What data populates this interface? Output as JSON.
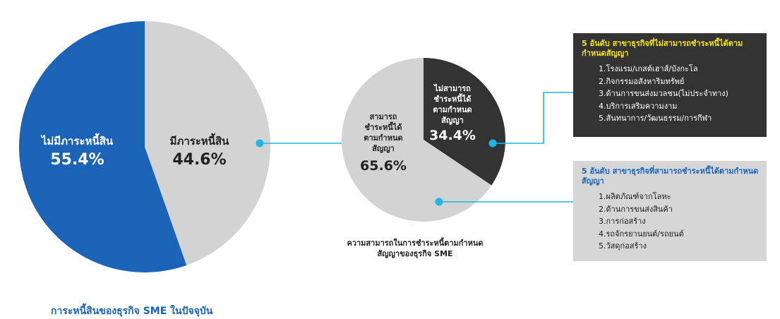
{
  "chart_data": [
    {
      "type": "pie",
      "title": "การะหนี้สินของธุรกิจ SME ในปัจจุบัน",
      "slices": [
        {
          "label": "ไม่มีภาระหนี้สิน",
          "value": 55.4,
          "display": "55.4%",
          "color": "#1a63b7"
        },
        {
          "label": "มีภาระหนี้สิน",
          "value": 44.6,
          "display": "44.6%",
          "color": "#d3d3d3"
        }
      ]
    },
    {
      "type": "pie",
      "title": "ความสามารถในการชำระหนี้ตามกำหนดสัญญาของธุรกิจ SME",
      "slices": [
        {
          "label": "ไม่สามารถชำระหนี้ได้ตามกำหนดสัญญา",
          "value": 34.4,
          "display": "34.4%",
          "color": "#333333"
        },
        {
          "label": "สามารถชำระหนี้ได้ตามกำหนดสัญญา",
          "value": 65.6,
          "display": "65.6%",
          "color": "#d3d3d3"
        }
      ]
    }
  ],
  "big_pie": {
    "no_debt_label": "ไม่มีภาระหนี้สิน",
    "no_debt_pct": "55.4%",
    "debt_label": "มีภาระหนี้สิน",
    "debt_pct": "44.6%",
    "caption": "การะหนี้สินของธุรกิจ SME ในปัจจุบัน"
  },
  "small_pie": {
    "cannot_line1": "ไม่สามารถ",
    "cannot_line2": "ชำระหนี้ได้",
    "cannot_line3": "ตามกำหนด",
    "cannot_line4": "สัญญา",
    "cannot_pct": "34.4%",
    "can_line1": "สามารถ",
    "can_line2": "ชำระหนี้ได้",
    "can_line3": "ตามกำหนด",
    "can_line4": "สัญญา",
    "can_pct": "65.6%",
    "caption_line1": "ความสามารถในการชำระหนี้ตามกำหนด",
    "caption_line2": "สัญญาของธุรกิจ SME"
  },
  "box_cannot": {
    "title": "5 อันดับ สาขาธุรกิจที่ไม่สามารถชำระหนี้ได้ตามกำหนดสัญญา",
    "items": [
      "1.โรงแรม/เกสต์เฮาส์/บังกะโล",
      "2.กิจกรรมอสังหาริมทรัพย์",
      "3.ด้านการขนส่งมวลชน(ไม่ประจำทาง)",
      "4.บริการเสริมความงาม",
      "5.สันทนาการ/วัฒนธรรม/การกีฬา"
    ]
  },
  "box_can": {
    "title": "5 อันดับ สาขาธุรกิจที่สามารถชำระหนี้ได้ตามกำหนดสัญญา",
    "items": [
      "1.ผลิตภัณฑ์จากโลหะ",
      "2.ด้านการขนส่งสินค้า",
      "3.การก่อสร้าง",
      "4.รถจักรยานยนต์/รถยนต์",
      "5.วัสดุก่อสร้าง"
    ]
  },
  "colors": {
    "blue": "#1a63b7",
    "grey": "#d3d3d3",
    "dark": "#333333",
    "accent": "#1fb5e6",
    "yellow": "#f5e31d"
  }
}
